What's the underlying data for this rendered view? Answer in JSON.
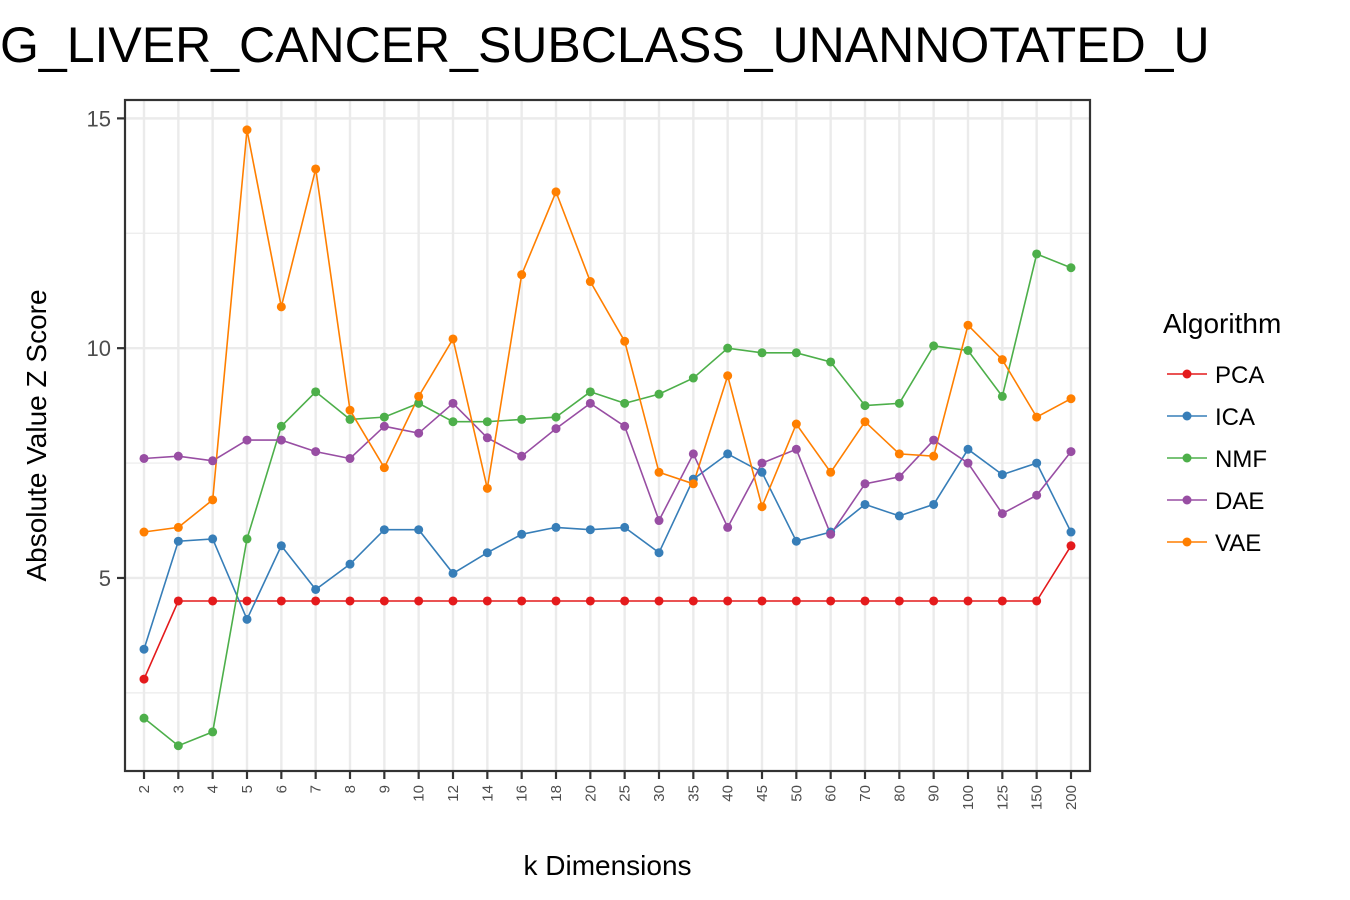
{
  "chart_data": {
    "type": "line",
    "title": "G_LIVER_CANCER_SUBCLASS_UNANNOTATED_U",
    "xlabel": "k Dimensions",
    "ylabel": "Absolute Value Z Score",
    "categories": [
      "2",
      "3",
      "4",
      "5",
      "6",
      "7",
      "8",
      "9",
      "10",
      "12",
      "14",
      "16",
      "18",
      "20",
      "25",
      "30",
      "35",
      "40",
      "45",
      "50",
      "60",
      "70",
      "80",
      "90",
      "100",
      "125",
      "150",
      "200"
    ],
    "ylim": [
      0.8,
      15.4
    ],
    "yticks": [
      5,
      10,
      15
    ],
    "grid": true,
    "legend": {
      "title": "Algorithm",
      "placement": "right"
    },
    "series": [
      {
        "name": "PCA",
        "color": "#E41A1C",
        "values": [
          2.8,
          4.5,
          4.5,
          4.5,
          4.5,
          4.5,
          4.5,
          4.5,
          4.5,
          4.5,
          4.5,
          4.5,
          4.5,
          4.5,
          4.5,
          4.5,
          4.5,
          4.5,
          4.5,
          4.5,
          4.5,
          4.5,
          4.5,
          4.5,
          4.5,
          4.5,
          4.5,
          5.7
        ]
      },
      {
        "name": "ICA",
        "color": "#377EB8",
        "values": [
          3.45,
          5.8,
          5.85,
          4.1,
          5.7,
          4.75,
          5.3,
          6.05,
          6.05,
          5.1,
          5.55,
          5.95,
          6.1,
          6.05,
          6.1,
          5.55,
          7.15,
          7.7,
          7.3,
          5.8,
          6.0,
          6.6,
          6.35,
          6.6,
          7.8,
          7.25,
          7.5,
          6.0
        ]
      },
      {
        "name": "NMF",
        "color": "#4DAF4A",
        "values": [
          1.95,
          1.35,
          1.65,
          5.85,
          8.3,
          9.05,
          8.45,
          8.5,
          8.8,
          8.4,
          8.4,
          8.45,
          8.5,
          9.05,
          8.8,
          9.0,
          9.35,
          10.0,
          9.9,
          9.9,
          9.7,
          8.75,
          8.8,
          10.05,
          9.95,
          8.95,
          12.05,
          11.75
        ]
      },
      {
        "name": "DAE",
        "color": "#984EA3",
        "values": [
          7.6,
          7.65,
          7.55,
          8.0,
          8.0,
          7.75,
          7.6,
          8.3,
          8.15,
          8.8,
          8.05,
          7.65,
          8.25,
          8.8,
          8.3,
          6.25,
          7.7,
          6.1,
          7.5,
          7.8,
          5.95,
          7.05,
          7.2,
          8.0,
          7.5,
          6.4,
          6.8,
          7.75
        ]
      },
      {
        "name": "VAE",
        "color": "#FF7F00",
        "values": [
          6.0,
          6.1,
          6.7,
          14.75,
          10.9,
          13.9,
          8.65,
          7.4,
          8.95,
          10.2,
          6.95,
          11.6,
          13.4,
          11.45,
          10.15,
          7.3,
          7.05,
          9.4,
          6.55,
          8.35,
          7.3,
          8.4,
          7.7,
          7.65,
          10.5,
          9.75,
          8.5,
          8.9
        ]
      }
    ]
  }
}
